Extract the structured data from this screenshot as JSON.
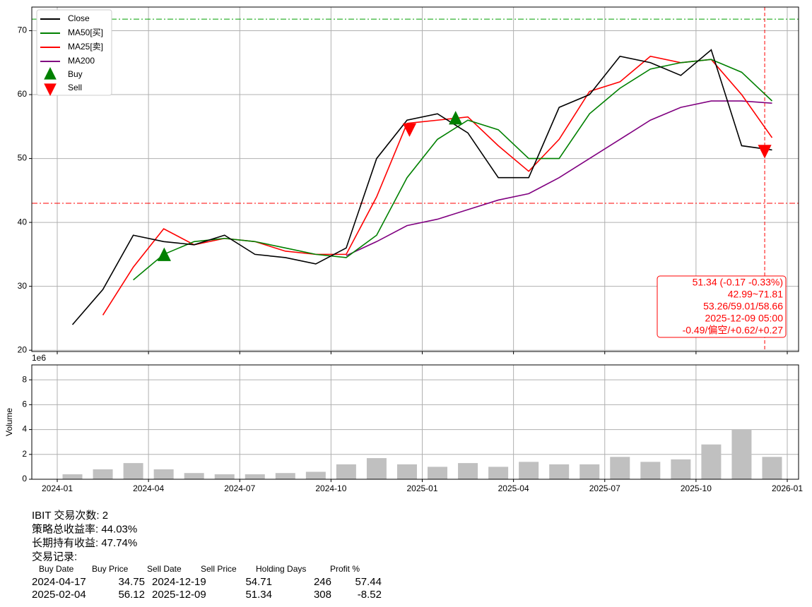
{
  "chart_data": [
    {
      "type": "line",
      "x": [
        "2024-01",
        "2024-02",
        "2024-03",
        "2024-04",
        "2024-05",
        "2024-06",
        "2024-07",
        "2024-08",
        "2024-09",
        "2024-10",
        "2024-11",
        "2024-12",
        "2025-01",
        "2025-02",
        "2025-03",
        "2025-04",
        "2025-05",
        "2025-06",
        "2025-07",
        "2025-08",
        "2025-09",
        "2025-10",
        "2025-11",
        "2025-12"
      ],
      "series": [
        {
          "name": "Close",
          "color": "#000000",
          "values": [
            24,
            29.5,
            38,
            37,
            36.5,
            38,
            35,
            34.5,
            33.5,
            36,
            50,
            56,
            57,
            54,
            47,
            47,
            58,
            60,
            66,
            65,
            63,
            67,
            52,
            51.34
          ]
        },
        {
          "name": "MA50[买]",
          "color": "#008000",
          "values": [
            null,
            null,
            31,
            35,
            37,
            37.5,
            37,
            36,
            35,
            34.5,
            38,
            47,
            53,
            56,
            54.5,
            50,
            50,
            57,
            61,
            64,
            65,
            65.5,
            63.5,
            59.01
          ]
        },
        {
          "name": "MA25[卖]",
          "color": "#ff0000",
          "values": [
            null,
            25.5,
            33,
            39,
            36.5,
            37.5,
            37,
            35.5,
            35,
            35,
            44,
            55.5,
            56,
            56.5,
            52,
            48,
            53,
            60.5,
            62,
            66,
            65,
            65.5,
            60,
            53.26
          ]
        },
        {
          "name": "MA200",
          "color": "#800080",
          "values": [
            null,
            null,
            null,
            null,
            null,
            null,
            null,
            null,
            null,
            34.8,
            37,
            39.5,
            40.5,
            42,
            43.5,
            44.5,
            47,
            50,
            53,
            56,
            58,
            59,
            59,
            58.66
          ]
        }
      ],
      "markers": [
        {
          "name": "Buy",
          "color": "#008000",
          "symbol": "up",
          "x": [
            "2024-04-17",
            "2025-02-04"
          ],
          "values": [
            34.75,
            56.12
          ]
        },
        {
          "name": "Sell",
          "color": "#ff0000",
          "symbol": "down",
          "x": [
            "2024-12-19",
            "2025-12-09"
          ],
          "values": [
            54.71,
            51.34
          ]
        }
      ],
      "hlines": [
        {
          "value": 71.81,
          "color": "#00a000"
        },
        {
          "value": 42.99,
          "color": "#ff0000"
        }
      ],
      "vline": {
        "x": "2025-12-09",
        "color": "#ff0000"
      },
      "annotation": [
        "51.34 (-0.17 -0.33%)",
        "42.99~71.81",
        "53.26/59.01/58.66",
        "2025-12-09 05:00",
        "-0.49/偏空/+0.62/+0.27"
      ],
      "ylim": [
        19.8,
        73.7
      ],
      "yticks": [
        20,
        30,
        40,
        50,
        60,
        70
      ],
      "xticks": [
        "2024-01",
        "2024-04",
        "2024-07",
        "2024-10",
        "2025-01",
        "2025-04",
        "2025-07",
        "2025-10",
        "2026-01"
      ],
      "grid": true,
      "legend": "upper left"
    },
    {
      "type": "bar",
      "x": [
        "2024-01",
        "2024-02",
        "2024-03",
        "2024-04",
        "2024-05",
        "2024-06",
        "2024-07",
        "2024-08",
        "2024-09",
        "2024-10",
        "2024-11",
        "2024-12",
        "2025-01",
        "2025-02",
        "2025-03",
        "2025-04",
        "2025-05",
        "2025-06",
        "2025-07",
        "2025-08",
        "2025-09",
        "2025-10",
        "2025-11",
        "2025-12"
      ],
      "values": [
        0.4,
        0.8,
        1.3,
        0.8,
        0.5,
        0.4,
        0.4,
        0.5,
        0.6,
        1.2,
        1.7,
        1.2,
        1.0,
        1.3,
        1.0,
        1.4,
        1.2,
        1.2,
        1.8,
        1.4,
        1.6,
        2.8,
        4.0,
        1.8
      ],
      "color": "#c0c0c0",
      "ylabel": "Volume",
      "offset_label": "1e6",
      "ylim": [
        0,
        9.2
      ],
      "yticks": [
        0,
        2,
        4,
        6,
        8
      ],
      "xticks": [
        "2024-01",
        "2024-04",
        "2024-07",
        "2024-10",
        "2025-01",
        "2025-04",
        "2025-07",
        "2025-10",
        "2026-01"
      ],
      "grid": true
    }
  ],
  "summary": {
    "lines": [
      "IBIT 交易次数: 2",
      "策略总收益率: 44.03%",
      "长期持有收益: 47.74%",
      "交易记录:"
    ],
    "table": {
      "header": [
        "Buy Date",
        "Buy Price",
        "Sell Date",
        "Sell Price",
        "Holding Days",
        "Profit %"
      ],
      "rows": [
        [
          "2024-04-17",
          34.75,
          "2024-12-19",
          54.71,
          246,
          57.44
        ],
        [
          "2025-02-04",
          56.12,
          "2025-12-09",
          51.34,
          308,
          -8.52
        ]
      ]
    }
  }
}
